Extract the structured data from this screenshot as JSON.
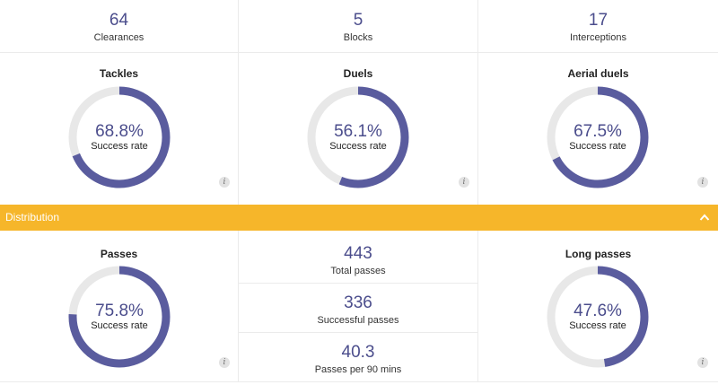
{
  "defending": {
    "stats": [
      {
        "value": "64",
        "label": "Clearances"
      },
      {
        "value": "5",
        "label": "Blocks"
      },
      {
        "value": "17",
        "label": "Interceptions"
      }
    ],
    "donuts": [
      {
        "title": "Tackles",
        "percent": "68.8%",
        "fraction": 0.688,
        "sub": "Success rate"
      },
      {
        "title": "Duels",
        "percent": "56.1%",
        "fraction": 0.561,
        "sub": "Success rate"
      },
      {
        "title": "Aerial duels",
        "percent": "67.5%",
        "fraction": 0.675,
        "sub": "Success rate"
      }
    ]
  },
  "distribution": {
    "title": "Distribution",
    "passes": {
      "title": "Passes",
      "percent": "75.8%",
      "fraction": 0.758,
      "sub": "Success rate"
    },
    "stats": [
      {
        "value": "443",
        "label": "Total passes"
      },
      {
        "value": "336",
        "label": "Successful passes"
      },
      {
        "value": "40.3",
        "label": "Passes per 90 mins"
      }
    ],
    "long_passes": {
      "title": "Long passes",
      "percent": "47.6%",
      "fraction": 0.476,
      "sub": "Success rate"
    }
  },
  "info_icon_glyph": "i",
  "colors": {
    "ring": "#5a5c9e",
    "track": "#e8e8e8",
    "accent_bar": "#f6b62a",
    "value_text": "#4b4d8c"
  }
}
